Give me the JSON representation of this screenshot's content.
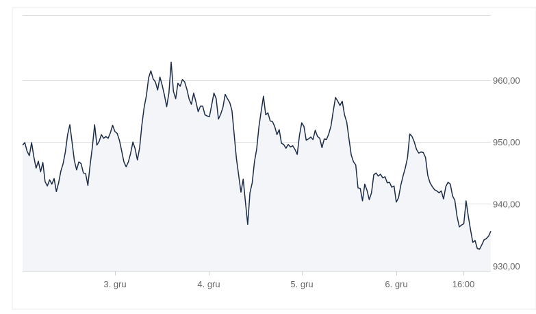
{
  "chart_data": {
    "type": "area",
    "title": "",
    "xlabel": "",
    "ylabel": "",
    "x_tick_labels": [
      "3. gru",
      "4. gru",
      "5. gru",
      "6. gru",
      "16:00"
    ],
    "y_tick_labels": [
      "930,00",
      "940,00",
      "950,00",
      "960,00"
    ],
    "y_ticks": [
      930,
      940,
      950,
      960
    ],
    "ylim": [
      929.2,
      970.5
    ],
    "grid": true,
    "legend": "none",
    "line_color": "#1b2b47",
    "fill_color": "#f3f5f8",
    "grid_color": "#dcdfe4",
    "series": [
      {
        "values": [
          949.5,
          949.9,
          948.5,
          947.8,
          949.9,
          947.6,
          945.8,
          946.9,
          945.2,
          946.7,
          943.6,
          942.9,
          943.9,
          943.2,
          944.1,
          942.0,
          943.4,
          945.3,
          946.5,
          948.4,
          951.2,
          952.8,
          949.9,
          947.0,
          945.5,
          946.8,
          946.5,
          945.0,
          944.9,
          943.0,
          946.3,
          949.2,
          952.8,
          949.5,
          950.1,
          951.2,
          950.6,
          950.9,
          950.6,
          951.5,
          952.7,
          951.7,
          951.4,
          950.3,
          948.6,
          946.8,
          946.0,
          946.8,
          948.2,
          950.0,
          948.9,
          947.1,
          949.1,
          952.8,
          955.6,
          957.5,
          960.4,
          961.5,
          960.2,
          959.7,
          958.4,
          960.5,
          959.2,
          957.6,
          955.7,
          957.9,
          962.9,
          958.2,
          957.0,
          959.5,
          959.0,
          960.1,
          959.7,
          958.5,
          956.9,
          956.1,
          957.9,
          956.5,
          954.9,
          955.8,
          955.8,
          954.4,
          954.2,
          954.1,
          956.0,
          957.9,
          957.0,
          953.7,
          954.5,
          955.6,
          957.7,
          957.0,
          956.4,
          955.1,
          951.2,
          947.3,
          944.6,
          941.9,
          944.0,
          940.3,
          936.7,
          941.8,
          943.4,
          946.8,
          948.9,
          952.5,
          955.0,
          957.4,
          954.4,
          954.7,
          953.4,
          953.3,
          952.5,
          951.2,
          952.0,
          949.8,
          949.6,
          949.0,
          949.6,
          949.2,
          949.4,
          948.8,
          948.0,
          951.1,
          953.1,
          952.5,
          950.3,
          950.5,
          950.8,
          950.4,
          951.9,
          950.9,
          950.6,
          949.1,
          950.5,
          950.4,
          951.3,
          952.6,
          955.0,
          957.2,
          956.6,
          955.9,
          956.6,
          954.4,
          953.2,
          950.5,
          947.9,
          946.8,
          946.3,
          942.6,
          942.5,
          940.5,
          943.2,
          942.2,
          940.7,
          941.8,
          944.7,
          945.0,
          944.5,
          944.8,
          944.2,
          944.4,
          943.4,
          943.5,
          942.7,
          942.9,
          940.3,
          941.0,
          943.0,
          944.5,
          945.8,
          947.5,
          951.3,
          950.9,
          950.0,
          948.8,
          948.2,
          948.4,
          948.3,
          947.5,
          944.6,
          943.4,
          942.8,
          942.3,
          942.1,
          941.8,
          942.1,
          940.8,
          942.8,
          943.5,
          943.2,
          941.3,
          940.6,
          938.0,
          936.3,
          936.6,
          936.8,
          940.5,
          938.0,
          935.8,
          933.8,
          934.1,
          932.8,
          932.7,
          933.4,
          934.2,
          934.4,
          934.8,
          935.6
        ]
      }
    ]
  }
}
